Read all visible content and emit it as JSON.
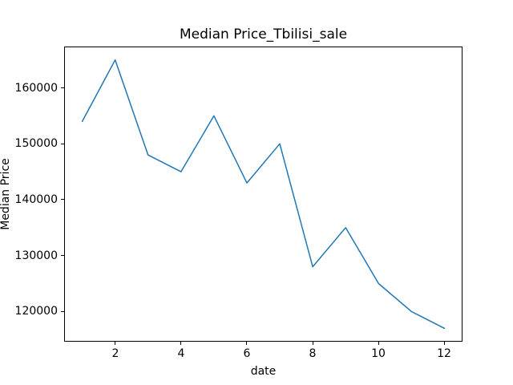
{
  "figure": {
    "background": "#ffffff",
    "text_color": "#000000",
    "spine_color": "#000000"
  },
  "chart_data": {
    "type": "line",
    "title": "Median Price_Tbilisi_sale",
    "xlabel": "date",
    "ylabel": "Median Price",
    "x": [
      1,
      2,
      3,
      4,
      5,
      6,
      7,
      8,
      9,
      10,
      11,
      12
    ],
    "values": [
      154000,
      165000,
      148000,
      145000,
      155000,
      143000,
      150000,
      128000,
      135000,
      125000,
      120000,
      117000
    ],
    "xlim": [
      0.45,
      12.55
    ],
    "ylim": [
      114600,
      167400
    ],
    "xticks": [
      2,
      4,
      6,
      8,
      10,
      12
    ],
    "yticks": [
      120000,
      130000,
      140000,
      150000,
      160000
    ],
    "xtick_labels": [
      "2",
      "4",
      "6",
      "8",
      "10",
      "12"
    ],
    "ytick_labels": [
      "120000",
      "130000",
      "140000",
      "150000",
      "160000"
    ],
    "grid": false,
    "legend": null,
    "line_color": "#1f77b4",
    "line_width": 1.5
  }
}
